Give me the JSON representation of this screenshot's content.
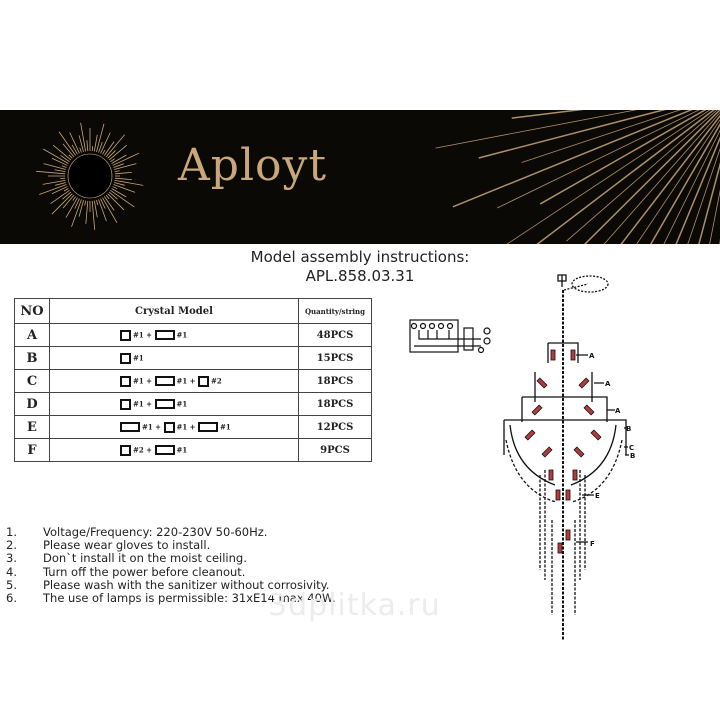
{
  "banner": {
    "brand": "Aployt",
    "brand_color": "#c9a77a",
    "background": "#0b0906"
  },
  "header": {
    "title": "Model assembly instructions:",
    "model": "APL.858.03.31"
  },
  "table": {
    "headers": {
      "no": "NO",
      "model": "Crystal    Model",
      "qty": "Quantity/string"
    },
    "rows": [
      {
        "no": "A",
        "model": [
          {
            "shape": "square",
            "count": "#1"
          },
          {
            "shape": "rect",
            "count": "#1"
          }
        ],
        "qty": "48PCS"
      },
      {
        "no": "B",
        "model": [
          {
            "shape": "square",
            "count": "#1"
          }
        ],
        "qty": "15PCS"
      },
      {
        "no": "C",
        "model": [
          {
            "shape": "square",
            "count": "#1"
          },
          {
            "shape": "rect",
            "count": "#1"
          },
          {
            "shape": "square",
            "count": "#2"
          }
        ],
        "qty": "18PCS"
      },
      {
        "no": "D",
        "model": [
          {
            "shape": "square",
            "count": "#1"
          },
          {
            "shape": "rect",
            "count": "#1"
          }
        ],
        "qty": "18PCS"
      },
      {
        "no": "E",
        "model": [
          {
            "shape": "rect",
            "count": "#1"
          },
          {
            "shape": "square",
            "count": "#1"
          },
          {
            "shape": "rect",
            "count": "#1"
          }
        ],
        "qty": "12PCS"
      },
      {
        "no": "F",
        "model": [
          {
            "shape": "square",
            "count": "#2"
          },
          {
            "shape": "rect",
            "count": "#1"
          }
        ],
        "qty": "9PCS"
      }
    ]
  },
  "diagram": {
    "labels": [
      "A",
      "A",
      "A",
      "B",
      "C",
      "B",
      "E",
      "F"
    ]
  },
  "notes": [
    {
      "n": "1.",
      "text": "Voltage/Frequency: 220-230V 50-60Hz."
    },
    {
      "n": "2.",
      "text": "Please wear gloves to install."
    },
    {
      "n": "3.",
      "text": "Don`t install it on the moist ceiling."
    },
    {
      "n": "4.",
      "text": "Turn off the power before cleanout."
    },
    {
      "n": "5.",
      "text": "Please wash with the sanitizer without corrosivity."
    },
    {
      "n": "6.",
      "text": "The use of lamps is permissible: 31xE14 max 40W."
    }
  ],
  "watermark": "3dplitka.ru"
}
